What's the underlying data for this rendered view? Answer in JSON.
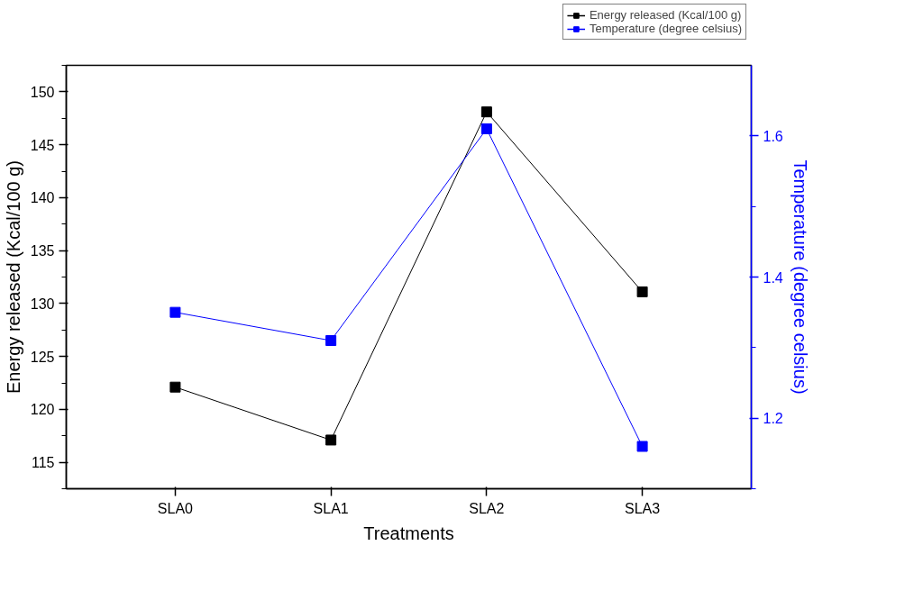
{
  "chart_data": {
    "type": "line",
    "xlabel": "Treatments",
    "ylabel": "Energy released (Kcal/100 g)",
    "y2label": "Temperature (degree celsius)",
    "categories": [
      "SLA0",
      "SLA1",
      "SLA2",
      "SLA3"
    ],
    "series": [
      {
        "name": "Energy released (Kcal/100 g)",
        "color": "#000000",
        "values": [
          122.1,
          117.1,
          148.1,
          131.1
        ]
      },
      {
        "name": "Temperature (degree celsius)",
        "color": "#0000ff",
        "axis": "y2",
        "values": [
          1.35,
          1.31,
          1.61,
          1.16
        ]
      }
    ],
    "ylim": [
      112.5,
      152.5
    ],
    "yticks": [
      115,
      120,
      125,
      130,
      135,
      140,
      145,
      150
    ],
    "y2lim": [
      1.1,
      1.7
    ],
    "y2ticks": [
      1.2,
      1.4,
      1.6
    ],
    "marker": "square",
    "line_style": "solid",
    "grid": false,
    "legend": "top right"
  }
}
